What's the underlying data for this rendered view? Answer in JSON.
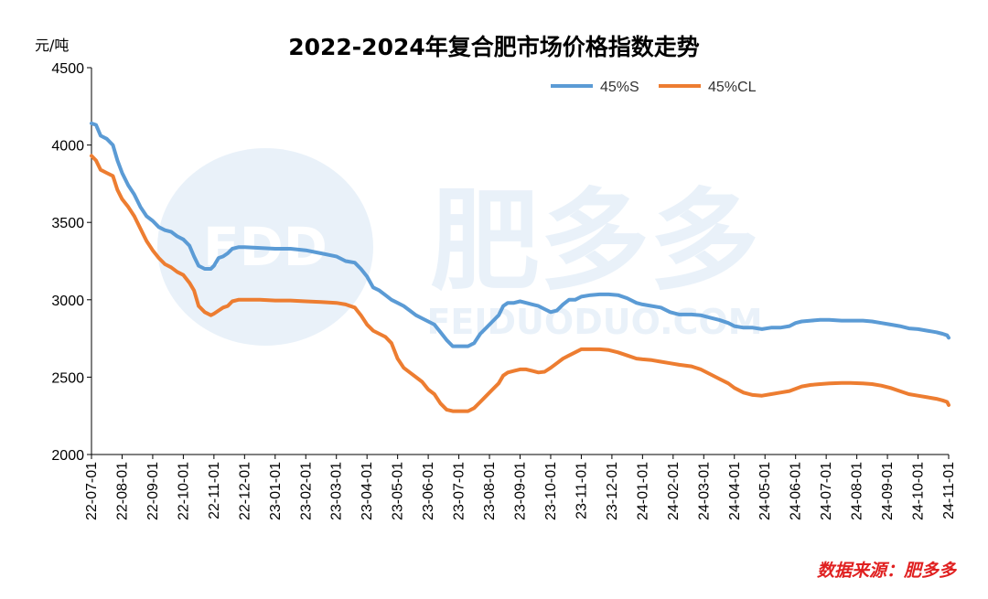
{
  "chart_data": {
    "type": "line",
    "title": "2022-2024年复合肥市场价格指数走势",
    "unit_label": "元/吨",
    "source": "数据来源：肥多多",
    "watermark": {
      "logo": "FDD",
      "name": "肥多多",
      "url": "FEIDUODUO.COM"
    },
    "ylim": [
      2000,
      4500
    ],
    "yticks": [
      2000,
      2500,
      3000,
      3500,
      4000,
      4500
    ],
    "legend_position": "top-right",
    "grid": false,
    "x_labels": [
      "22-07-01",
      "22-08-01",
      "22-09-01",
      "22-10-01",
      "22-11-01",
      "22-12-01",
      "23-01-01",
      "23-02-01",
      "23-03-01",
      "23-04-01",
      "23-05-01",
      "23-06-01",
      "23-07-01",
      "23-08-01",
      "23-09-01",
      "23-10-01",
      "23-11-01",
      "23-12-01",
      "24-01-01",
      "24-02-01",
      "24-03-01",
      "24-04-01",
      "24-05-01",
      "24-06-01",
      "24-07-01",
      "24-08-01",
      "24-09-01",
      "24-10-01",
      "24-11-01"
    ],
    "series": [
      {
        "name": "45%S",
        "color": "#5b9bd5",
        "points": [
          [
            0,
            4140
          ],
          [
            0.15,
            4130
          ],
          [
            0.3,
            4060
          ],
          [
            0.5,
            4040
          ],
          [
            0.7,
            4000
          ],
          [
            0.85,
            3900
          ],
          [
            1.0,
            3820
          ],
          [
            1.2,
            3740
          ],
          [
            1.4,
            3680
          ],
          [
            1.6,
            3600
          ],
          [
            1.8,
            3540
          ],
          [
            2.0,
            3510
          ],
          [
            2.2,
            3470
          ],
          [
            2.4,
            3450
          ],
          [
            2.6,
            3440
          ],
          [
            2.8,
            3410
          ],
          [
            3.0,
            3390
          ],
          [
            3.2,
            3350
          ],
          [
            3.35,
            3280
          ],
          [
            3.5,
            3220
          ],
          [
            3.7,
            3200
          ],
          [
            3.9,
            3200
          ],
          [
            4.0,
            3220
          ],
          [
            4.15,
            3270
          ],
          [
            4.3,
            3280
          ],
          [
            4.45,
            3300
          ],
          [
            4.6,
            3330
          ],
          [
            4.8,
            3340
          ],
          [
            5.0,
            3340
          ],
          [
            5.5,
            3335
          ],
          [
            6.0,
            3330
          ],
          [
            6.5,
            3330
          ],
          [
            7.0,
            3320
          ],
          [
            7.5,
            3300
          ],
          [
            8.0,
            3280
          ],
          [
            8.3,
            3250
          ],
          [
            8.6,
            3240
          ],
          [
            8.8,
            3200
          ],
          [
            9.0,
            3150
          ],
          [
            9.2,
            3080
          ],
          [
            9.4,
            3060
          ],
          [
            9.6,
            3030
          ],
          [
            9.8,
            3000
          ],
          [
            10.0,
            2980
          ],
          [
            10.2,
            2960
          ],
          [
            10.4,
            2930
          ],
          [
            10.6,
            2900
          ],
          [
            10.8,
            2880
          ],
          [
            11.0,
            2860
          ],
          [
            11.2,
            2840
          ],
          [
            11.4,
            2790
          ],
          [
            11.6,
            2740
          ],
          [
            11.8,
            2700
          ],
          [
            12.0,
            2700
          ],
          [
            12.3,
            2700
          ],
          [
            12.5,
            2720
          ],
          [
            12.7,
            2780
          ],
          [
            12.9,
            2820
          ],
          [
            13.1,
            2860
          ],
          [
            13.3,
            2900
          ],
          [
            13.45,
            2960
          ],
          [
            13.6,
            2980
          ],
          [
            13.8,
            2980
          ],
          [
            14.0,
            2990
          ],
          [
            14.2,
            2980
          ],
          [
            14.4,
            2970
          ],
          [
            14.6,
            2960
          ],
          [
            14.8,
            2940
          ],
          [
            15.0,
            2920
          ],
          [
            15.2,
            2930
          ],
          [
            15.4,
            2970
          ],
          [
            15.6,
            3000
          ],
          [
            15.8,
            3000
          ],
          [
            16.0,
            3020
          ],
          [
            16.3,
            3030
          ],
          [
            16.6,
            3035
          ],
          [
            16.9,
            3035
          ],
          [
            17.2,
            3030
          ],
          [
            17.5,
            3010
          ],
          [
            17.8,
            2980
          ],
          [
            18.0,
            2970
          ],
          [
            18.3,
            2960
          ],
          [
            18.6,
            2950
          ],
          [
            18.9,
            2920
          ],
          [
            19.2,
            2905
          ],
          [
            19.6,
            2905
          ],
          [
            19.9,
            2900
          ],
          [
            20.2,
            2885
          ],
          [
            20.5,
            2870
          ],
          [
            20.8,
            2850
          ],
          [
            21.0,
            2830
          ],
          [
            21.3,
            2820
          ],
          [
            21.6,
            2820
          ],
          [
            21.9,
            2810
          ],
          [
            22.2,
            2820
          ],
          [
            22.5,
            2820
          ],
          [
            22.8,
            2830
          ],
          [
            23.0,
            2850
          ],
          [
            23.2,
            2860
          ],
          [
            23.5,
            2865
          ],
          [
            23.8,
            2870
          ],
          [
            24.1,
            2870
          ],
          [
            24.5,
            2865
          ],
          [
            24.8,
            2865
          ],
          [
            25.2,
            2865
          ],
          [
            25.5,
            2860
          ],
          [
            25.8,
            2850
          ],
          [
            26.1,
            2840
          ],
          [
            26.4,
            2830
          ],
          [
            26.7,
            2815
          ],
          [
            27.0,
            2810
          ],
          [
            27.3,
            2800
          ],
          [
            27.6,
            2790
          ],
          [
            27.8,
            2780
          ],
          [
            27.95,
            2770
          ],
          [
            28.0,
            2755
          ]
        ]
      },
      {
        "name": "45%CL",
        "color": "#ed7d31",
        "points": [
          [
            0,
            3930
          ],
          [
            0.15,
            3900
          ],
          [
            0.3,
            3840
          ],
          [
            0.5,
            3820
          ],
          [
            0.7,
            3800
          ],
          [
            0.85,
            3710
          ],
          [
            1.0,
            3650
          ],
          [
            1.2,
            3600
          ],
          [
            1.4,
            3540
          ],
          [
            1.6,
            3460
          ],
          [
            1.8,
            3380
          ],
          [
            2.0,
            3320
          ],
          [
            2.2,
            3270
          ],
          [
            2.4,
            3230
          ],
          [
            2.6,
            3210
          ],
          [
            2.8,
            3180
          ],
          [
            3.0,
            3160
          ],
          [
            3.2,
            3110
          ],
          [
            3.35,
            3060
          ],
          [
            3.5,
            2960
          ],
          [
            3.7,
            2920
          ],
          [
            3.9,
            2900
          ],
          [
            4.0,
            2910
          ],
          [
            4.15,
            2930
          ],
          [
            4.3,
            2950
          ],
          [
            4.45,
            2960
          ],
          [
            4.6,
            2990
          ],
          [
            4.8,
            3000
          ],
          [
            5.0,
            3000
          ],
          [
            5.5,
            3000
          ],
          [
            6.0,
            2995
          ],
          [
            6.5,
            2995
          ],
          [
            7.0,
            2990
          ],
          [
            7.5,
            2985
          ],
          [
            8.0,
            2980
          ],
          [
            8.3,
            2970
          ],
          [
            8.6,
            2950
          ],
          [
            8.8,
            2900
          ],
          [
            9.0,
            2840
          ],
          [
            9.2,
            2800
          ],
          [
            9.4,
            2780
          ],
          [
            9.6,
            2760
          ],
          [
            9.8,
            2720
          ],
          [
            10.0,
            2620
          ],
          [
            10.2,
            2560
          ],
          [
            10.4,
            2530
          ],
          [
            10.6,
            2500
          ],
          [
            10.8,
            2470
          ],
          [
            11.0,
            2420
          ],
          [
            11.2,
            2390
          ],
          [
            11.4,
            2330
          ],
          [
            11.6,
            2290
          ],
          [
            11.8,
            2280
          ],
          [
            12.0,
            2280
          ],
          [
            12.3,
            2280
          ],
          [
            12.5,
            2300
          ],
          [
            12.7,
            2340
          ],
          [
            12.9,
            2380
          ],
          [
            13.1,
            2420
          ],
          [
            13.3,
            2460
          ],
          [
            13.45,
            2510
          ],
          [
            13.6,
            2530
          ],
          [
            13.8,
            2540
          ],
          [
            14.0,
            2550
          ],
          [
            14.2,
            2550
          ],
          [
            14.4,
            2540
          ],
          [
            14.6,
            2530
          ],
          [
            14.8,
            2535
          ],
          [
            15.0,
            2560
          ],
          [
            15.2,
            2590
          ],
          [
            15.4,
            2620
          ],
          [
            15.6,
            2640
          ],
          [
            15.8,
            2660
          ],
          [
            16.0,
            2680
          ],
          [
            16.3,
            2680
          ],
          [
            16.6,
            2680
          ],
          [
            16.9,
            2675
          ],
          [
            17.2,
            2660
          ],
          [
            17.5,
            2640
          ],
          [
            17.8,
            2620
          ],
          [
            18.0,
            2615
          ],
          [
            18.3,
            2610
          ],
          [
            18.6,
            2600
          ],
          [
            18.9,
            2590
          ],
          [
            19.2,
            2580
          ],
          [
            19.6,
            2570
          ],
          [
            19.9,
            2550
          ],
          [
            20.2,
            2520
          ],
          [
            20.5,
            2490
          ],
          [
            20.8,
            2460
          ],
          [
            21.0,
            2430
          ],
          [
            21.3,
            2400
          ],
          [
            21.6,
            2385
          ],
          [
            21.9,
            2380
          ],
          [
            22.2,
            2390
          ],
          [
            22.5,
            2400
          ],
          [
            22.8,
            2410
          ],
          [
            23.0,
            2425
          ],
          [
            23.2,
            2440
          ],
          [
            23.5,
            2450
          ],
          [
            23.8,
            2455
          ],
          [
            24.1,
            2460
          ],
          [
            24.5,
            2462
          ],
          [
            24.8,
            2462
          ],
          [
            25.2,
            2460
          ],
          [
            25.5,
            2455
          ],
          [
            25.8,
            2445
          ],
          [
            26.1,
            2430
          ],
          [
            26.4,
            2410
          ],
          [
            26.7,
            2390
          ],
          [
            27.0,
            2380
          ],
          [
            27.3,
            2370
          ],
          [
            27.6,
            2360
          ],
          [
            27.8,
            2350
          ],
          [
            27.95,
            2340
          ],
          [
            28.0,
            2320
          ]
        ]
      }
    ]
  }
}
